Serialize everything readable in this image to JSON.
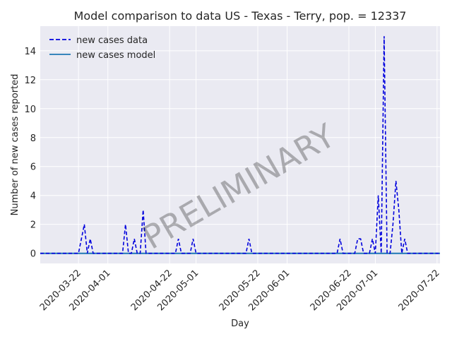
{
  "chart_data": {
    "type": "line",
    "title": "Model comparison to data US - Texas - Terry, pop. = 12337",
    "xlabel": "Day",
    "ylabel": "Number of new cases reported",
    "watermark": "PRELIMINARY",
    "xlim": [
      "2020-03-09",
      "2020-07-23"
    ],
    "ylim": [
      -0.7,
      15.7
    ],
    "yticks": [
      0,
      2,
      4,
      6,
      8,
      10,
      12,
      14
    ],
    "xtick_dates": [
      "2020-03-22",
      "2020-04-01",
      "2020-04-22",
      "2020-05-01",
      "2020-05-22",
      "2020-06-01",
      "2020-06-22",
      "2020-07-01",
      "2020-07-22"
    ],
    "xtick_labels": [
      "2020-03-22",
      "2020-04-01",
      "2020-04-22",
      "2020-05-01",
      "2020-05-22",
      "2020-06-01",
      "2020-06-22",
      "2020-07-01",
      "2020-07-22"
    ],
    "legend_position": "top-left",
    "grid": true,
    "colors": {
      "data": "#0000dd",
      "model": "#1f77b4",
      "plot_bg": "#eaeaf2",
      "grid": "#ffffff"
    },
    "series": [
      {
        "name": "new cases data",
        "style": "dashed",
        "points": [
          [
            "2020-03-09",
            0
          ],
          [
            "2020-03-22",
            0
          ],
          [
            "2020-03-24",
            2
          ],
          [
            "2020-03-25",
            0
          ],
          [
            "2020-03-26",
            1
          ],
          [
            "2020-03-27",
            0
          ],
          [
            "2020-04-06",
            0
          ],
          [
            "2020-04-07",
            2
          ],
          [
            "2020-04-08",
            0
          ],
          [
            "2020-04-09",
            0
          ],
          [
            "2020-04-10",
            1
          ],
          [
            "2020-04-11",
            0
          ],
          [
            "2020-04-12",
            0
          ],
          [
            "2020-04-13",
            3
          ],
          [
            "2020-04-14",
            0
          ],
          [
            "2020-04-24",
            0
          ],
          [
            "2020-04-25",
            1
          ],
          [
            "2020-04-26",
            0
          ],
          [
            "2020-04-29",
            0
          ],
          [
            "2020-04-30",
            1
          ],
          [
            "2020-05-01",
            0
          ],
          [
            "2020-05-18",
            0
          ],
          [
            "2020-05-19",
            1
          ],
          [
            "2020-05-20",
            0
          ],
          [
            "2020-06-18",
            0
          ],
          [
            "2020-06-19",
            1
          ],
          [
            "2020-06-20",
            0
          ],
          [
            "2020-06-24",
            0
          ],
          [
            "2020-06-25",
            1
          ],
          [
            "2020-06-26",
            1
          ],
          [
            "2020-06-27",
            0
          ],
          [
            "2020-06-29",
            0
          ],
          [
            "2020-06-30",
            1
          ],
          [
            "2020-07-01",
            0
          ],
          [
            "2020-07-02",
            4
          ],
          [
            "2020-07-03",
            0
          ],
          [
            "2020-07-04",
            15
          ],
          [
            "2020-07-05",
            0
          ],
          [
            "2020-07-06",
            0
          ],
          [
            "2020-07-07",
            2
          ],
          [
            "2020-07-08",
            5
          ],
          [
            "2020-07-09",
            3
          ],
          [
            "2020-07-10",
            0
          ],
          [
            "2020-07-11",
            1
          ],
          [
            "2020-07-12",
            0
          ],
          [
            "2020-07-23",
            0
          ]
        ]
      },
      {
        "name": "new cases model",
        "style": "solid",
        "points": [
          [
            "2020-03-09",
            0
          ],
          [
            "2020-07-23",
            0
          ]
        ]
      }
    ]
  }
}
